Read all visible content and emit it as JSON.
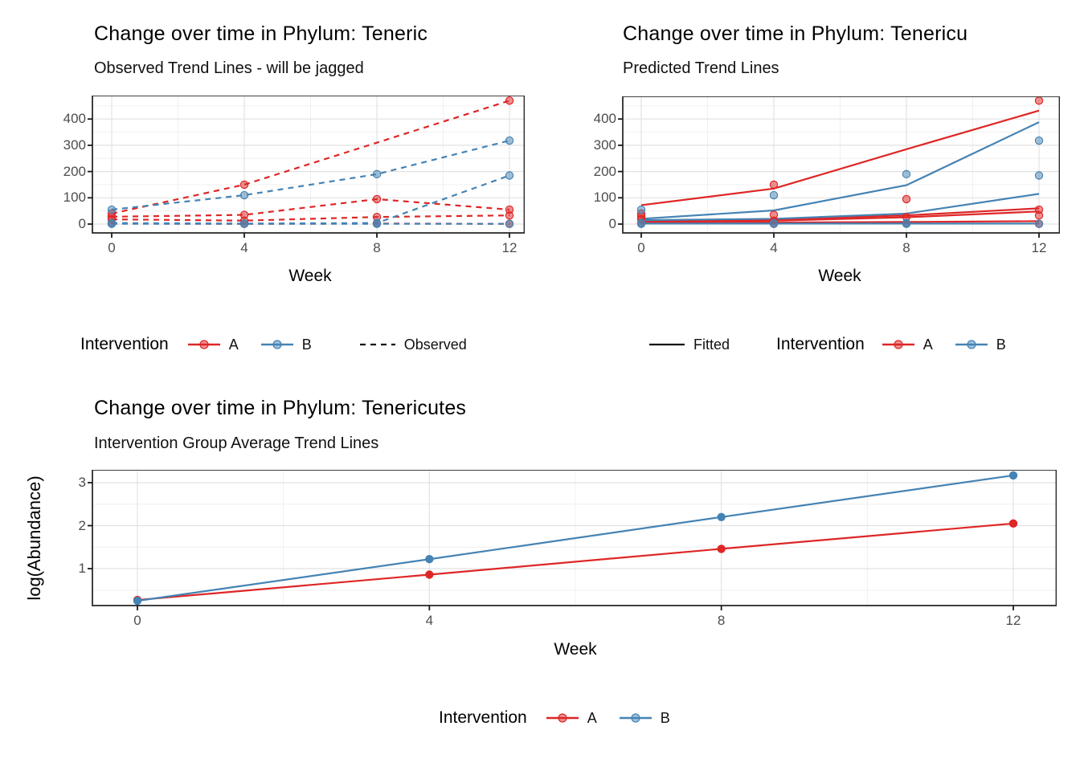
{
  "colors": {
    "red": "#DE2626",
    "blue": "#4583B4",
    "tick_text": "#4D4D4D",
    "title_text": "#000000",
    "grid_major": "#E2E2E2",
    "grid_minor": "#EFEFEF",
    "panel_border": "#2B2B2B",
    "tick_mark": "#1A1A1A",
    "legend_black": "#111111"
  },
  "chart_data": [
    {
      "id": "observed",
      "type": "line",
      "title": "Change over time in Phylum: Teneric",
      "subtitle": "Observed Trend Lines - will be jagged",
      "xlabel": "Week",
      "x_ticks": [
        0,
        4,
        8,
        12
      ],
      "x_minor": [
        2,
        6,
        10
      ],
      "y_ticks": [
        0,
        100,
        200,
        300,
        400
      ],
      "y_minor": [
        50,
        150,
        250,
        350,
        450
      ],
      "x_range": [
        -0.6,
        12.5
      ],
      "y_range": [
        -34,
        490
      ],
      "line_dash": "dashed",
      "show_markers": true,
      "series": [
        {
          "group": "A",
          "x": [
            0,
            4,
            12
          ],
          "y": [
            40,
            150,
            470
          ]
        },
        {
          "group": "A",
          "x": [
            0,
            4,
            8,
            12
          ],
          "y": [
            28,
            35,
            95,
            55
          ]
        },
        {
          "group": "A",
          "x": [
            0,
            4,
            8,
            12
          ],
          "y": [
            18,
            13,
            27,
            33
          ]
        },
        {
          "group": "A",
          "x": [
            0,
            4,
            8,
            12
          ],
          "y": [
            2,
            1,
            2,
            1
          ]
        },
        {
          "group": "B",
          "x": [
            0,
            4,
            8,
            12
          ],
          "y": [
            55,
            110,
            190,
            318
          ]
        },
        {
          "group": "B",
          "x": [
            0,
            4,
            8,
            12
          ],
          "y": [
            4,
            2,
            4,
            185
          ]
        },
        {
          "group": "B",
          "x": [
            0,
            4,
            8,
            12
          ],
          "y": [
            1,
            1,
            1,
            1
          ]
        }
      ]
    },
    {
      "id": "predicted",
      "type": "line",
      "title": "Change over time in Phylum: Tenericu",
      "subtitle": "Predicted Trend Lines",
      "xlabel": "Week",
      "x_ticks": [
        0,
        4,
        8,
        12
      ],
      "x_minor": [
        2,
        6,
        10
      ],
      "y_ticks": [
        0,
        100,
        200,
        300,
        400
      ],
      "y_minor": [
        50,
        150,
        250,
        350,
        450
      ],
      "x_range": [
        -0.6,
        12.5
      ],
      "y_range": [
        -34,
        490
      ],
      "line_dash": "solid",
      "show_markers": false,
      "series": [
        {
          "group": "A",
          "x": [
            0,
            4,
            8,
            12
          ],
          "y": [
            72,
            135,
            285,
            432
          ]
        },
        {
          "group": "A",
          "x": [
            0,
            4,
            8,
            12
          ],
          "y": [
            12,
            18,
            33,
            60
          ]
        },
        {
          "group": "A",
          "x": [
            0,
            4,
            8,
            12
          ],
          "y": [
            9,
            13,
            26,
            48
          ]
        },
        {
          "group": "A",
          "x": [
            0,
            4,
            8,
            12
          ],
          "y": [
            5,
            6,
            8,
            11
          ]
        },
        {
          "group": "B",
          "x": [
            0,
            4,
            8,
            12
          ],
          "y": [
            20,
            52,
            148,
            388
          ]
        },
        {
          "group": "B",
          "x": [
            0,
            4,
            8,
            12
          ],
          "y": [
            15,
            20,
            40,
            115
          ]
        },
        {
          "group": "B",
          "x": [
            0,
            4,
            8,
            12
          ],
          "y": [
            2,
            2,
            2,
            2
          ]
        }
      ],
      "scatter": [
        {
          "group": "A",
          "x": [
            0,
            4,
            12
          ],
          "y": [
            40,
            150,
            470
          ]
        },
        {
          "group": "A",
          "x": [
            0,
            4,
            8,
            12
          ],
          "y": [
            28,
            35,
            95,
            55
          ]
        },
        {
          "group": "A",
          "x": [
            0,
            4,
            8,
            12
          ],
          "y": [
            18,
            13,
            27,
            33
          ]
        },
        {
          "group": "A",
          "x": [
            0,
            4,
            8,
            12
          ],
          "y": [
            2,
            1,
            2,
            1
          ]
        },
        {
          "group": "B",
          "x": [
            0,
            4,
            8,
            12
          ],
          "y": [
            55,
            110,
            190,
            318
          ]
        },
        {
          "group": "B",
          "x": [
            0,
            4,
            8,
            12
          ],
          "y": [
            4,
            2,
            4,
            185
          ]
        },
        {
          "group": "B",
          "x": [
            0,
            4,
            8,
            12
          ],
          "y": [
            1,
            1,
            1,
            1
          ]
        }
      ]
    },
    {
      "id": "average",
      "type": "line",
      "title": "Change over time in Phylum: Tenericutes",
      "subtitle": "Intervention Group Average Trend Lines",
      "xlabel": "Week",
      "ylabel": "log(Abundance)",
      "x_ticks": [
        0,
        4,
        8,
        12
      ],
      "x_minor": [
        2,
        6,
        10
      ],
      "y_ticks": [
        1,
        2,
        3
      ],
      "y_minor": [
        0.5,
        1.5,
        2.5
      ],
      "x_range": [
        -0.62,
        12.6
      ],
      "y_range": [
        0.14,
        3.3
      ],
      "line_dash": "solid",
      "show_markers": true,
      "marker_opacity": 1,
      "series": [
        {
          "group": "A",
          "x": [
            0,
            4,
            8,
            12
          ],
          "y": [
            0.27,
            0.86,
            1.46,
            2.05
          ]
        },
        {
          "group": "B",
          "x": [
            0,
            4,
            8,
            12
          ],
          "y": [
            0.25,
            1.22,
            2.2,
            3.17
          ]
        }
      ]
    }
  ],
  "legends": [
    {
      "title": "Intervention",
      "items": [
        {
          "label": "A",
          "color_key": "red"
        },
        {
          "label": "B",
          "color_key": "blue"
        }
      ],
      "style_item": {
        "label": "Observed",
        "dash": "dashed"
      }
    },
    {
      "style_item": {
        "label": "Fitted",
        "dash": "solid"
      },
      "title": "Intervention",
      "items": [
        {
          "label": "A",
          "color_key": "red"
        },
        {
          "label": "B",
          "color_key": "blue"
        }
      ]
    },
    {
      "title": "Intervention",
      "items": [
        {
          "label": "A",
          "color_key": "red"
        },
        {
          "label": "B",
          "color_key": "blue"
        }
      ]
    }
  ]
}
